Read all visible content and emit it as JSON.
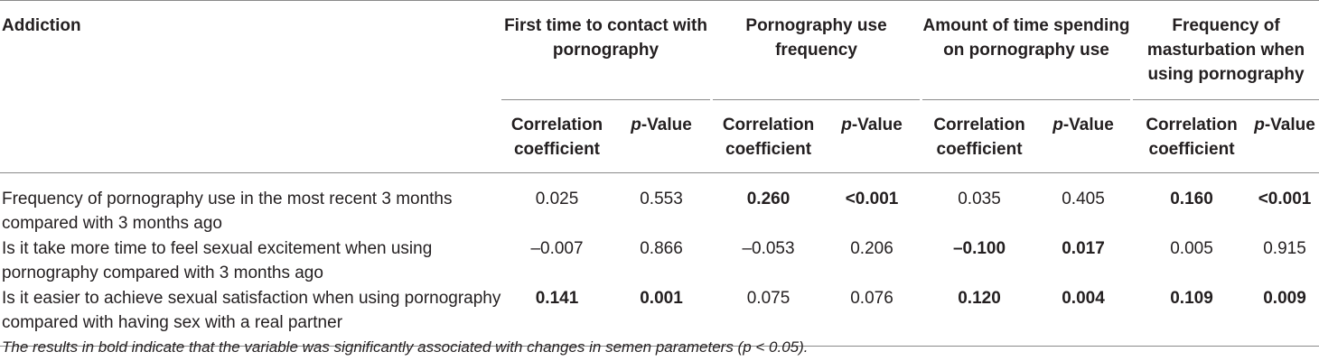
{
  "table": {
    "row_header_label": "Addiction",
    "groups": [
      "First time to contact with pornography",
      "Pornography use frequency",
      "Amount of time spending on pornography use",
      "Frequency of masturbation when using pornography"
    ],
    "sub_headers": {
      "coef": "Correlation coefficient",
      "p_prefix": "p",
      "p_suffix": "-Value"
    },
    "rows": [
      {
        "label": "Frequency of pornography use in the most recent 3 months compared with 3 months ago",
        "cells": [
          {
            "coef": "0.025",
            "coef_bold": false,
            "p": "0.553",
            "p_bold": false
          },
          {
            "coef": "0.260",
            "coef_bold": true,
            "p": "<0.001",
            "p_bold": true
          },
          {
            "coef": "0.035",
            "coef_bold": false,
            "p": "0.405",
            "p_bold": false
          },
          {
            "coef": "0.160",
            "coef_bold": true,
            "p": "<0.001",
            "p_bold": true
          }
        ]
      },
      {
        "label": "Is it take more time to feel sexual excitement when using pornography compared with 3 months ago",
        "cells": [
          {
            "coef": "–0.007",
            "coef_bold": false,
            "p": "0.866",
            "p_bold": false
          },
          {
            "coef": "–0.053",
            "coef_bold": false,
            "p": "0.206",
            "p_bold": false
          },
          {
            "coef": "–0.100",
            "coef_bold": true,
            "p": "0.017",
            "p_bold": true
          },
          {
            "coef": "0.005",
            "coef_bold": false,
            "p": "0.915",
            "p_bold": false
          }
        ]
      },
      {
        "label": "Is it easier to achieve sexual satisfaction when using pornography compared with having sex with a real partner",
        "cells": [
          {
            "coef": "0.141",
            "coef_bold": true,
            "p": "0.001",
            "p_bold": true
          },
          {
            "coef": "0.075",
            "coef_bold": false,
            "p": "0.076",
            "p_bold": false
          },
          {
            "coef": "0.120",
            "coef_bold": true,
            "p": "0.004",
            "p_bold": true
          },
          {
            "coef": "0.109",
            "coef_bold": true,
            "p": "0.009",
            "p_bold": true
          }
        ]
      }
    ],
    "footnote": "The results in bold indicate that the variable was significantly associated with changes in semen parameters (p < 0.05)."
  }
}
